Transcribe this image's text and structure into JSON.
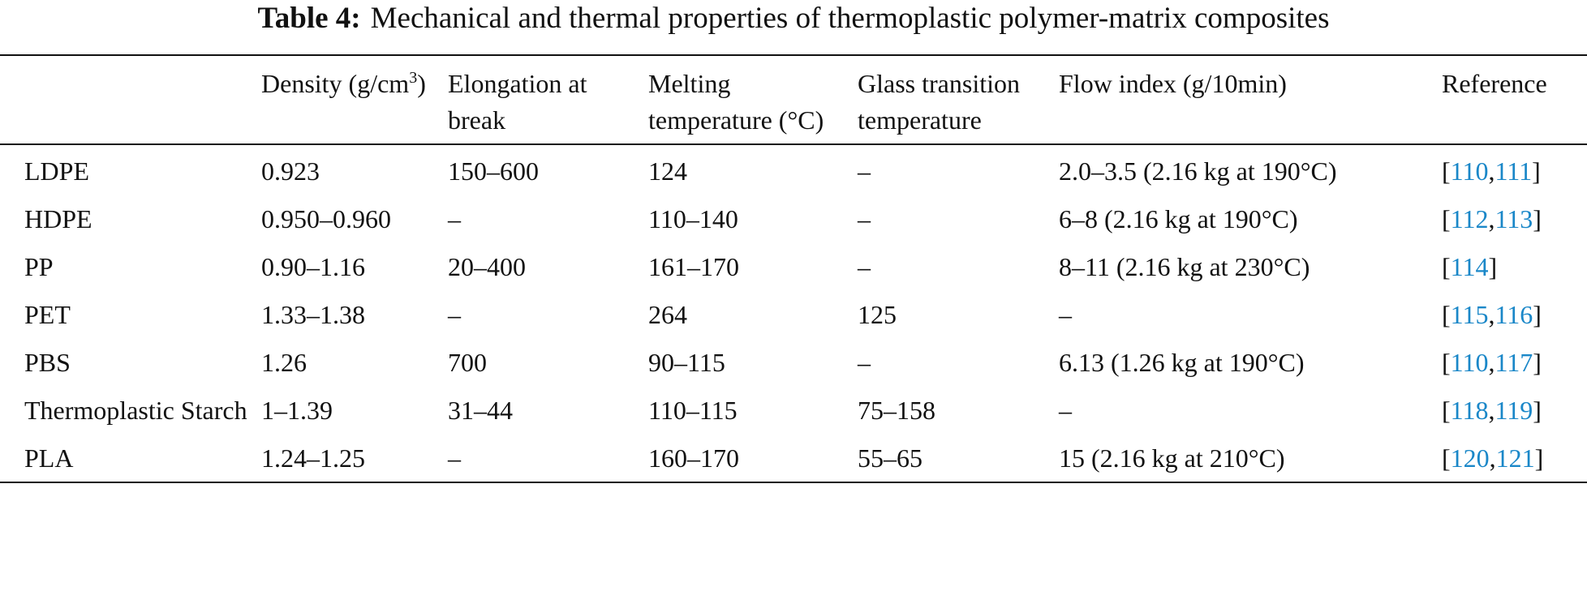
{
  "caption": {
    "label": "Table 4:",
    "text": "Mechanical and thermal properties of thermoplastic polymer-matrix composites"
  },
  "headers": {
    "col0": "",
    "density": "Density (g/cm",
    "density_sup": "3",
    "density_close": ")",
    "elongation": "Elongation at break",
    "melting": "Melting temperature (°C)",
    "glass": "Glass transition temperature",
    "flow": "Flow index (g/10min)",
    "reference": "Reference"
  },
  "rows": [
    {
      "name": "LDPE",
      "density": "0.923",
      "elongation": "150–600",
      "melting": "124",
      "glass": "–",
      "flow": "2.0–3.5 (2.16 kg at 190°C)",
      "refs": [
        "110",
        "111"
      ]
    },
    {
      "name": "HDPE",
      "density": "0.950–0.960",
      "elongation": "–",
      "melting": "110–140",
      "glass": "–",
      "flow": "6–8 (2.16 kg at 190°C)",
      "refs": [
        "112",
        "113"
      ]
    },
    {
      "name": "PP",
      "density": "0.90–1.16",
      "elongation": "20–400",
      "melting": "161–170",
      "glass": "–",
      "flow": "8–11 (2.16 kg at 230°C)",
      "refs": [
        "114"
      ]
    },
    {
      "name": "PET",
      "density": "1.33–1.38",
      "elongation": "–",
      "melting": "264",
      "glass": "125",
      "flow": "–",
      "refs": [
        "115",
        "116"
      ]
    },
    {
      "name": "PBS",
      "density": "1.26",
      "elongation": "700",
      "melting": "90–115",
      "glass": "–",
      "flow": "6.13 (1.26 kg at 190°C)",
      "refs": [
        "110",
        "117"
      ]
    },
    {
      "name": "Thermoplastic Starch",
      "density": "1–1.39",
      "elongation": "31–44",
      "melting": "110–115",
      "glass": "75–158",
      "flow": "–",
      "refs": [
        "118",
        "119"
      ]
    },
    {
      "name": "PLA",
      "density": "1.24–1.25",
      "elongation": "–",
      "melting": "160–170",
      "glass": "55–65",
      "flow": "15 (2.16 kg at 210°C)",
      "refs": [
        "120",
        "121"
      ]
    }
  ],
  "colors": {
    "text": "#111111",
    "reference_link": "#1a87c8"
  }
}
